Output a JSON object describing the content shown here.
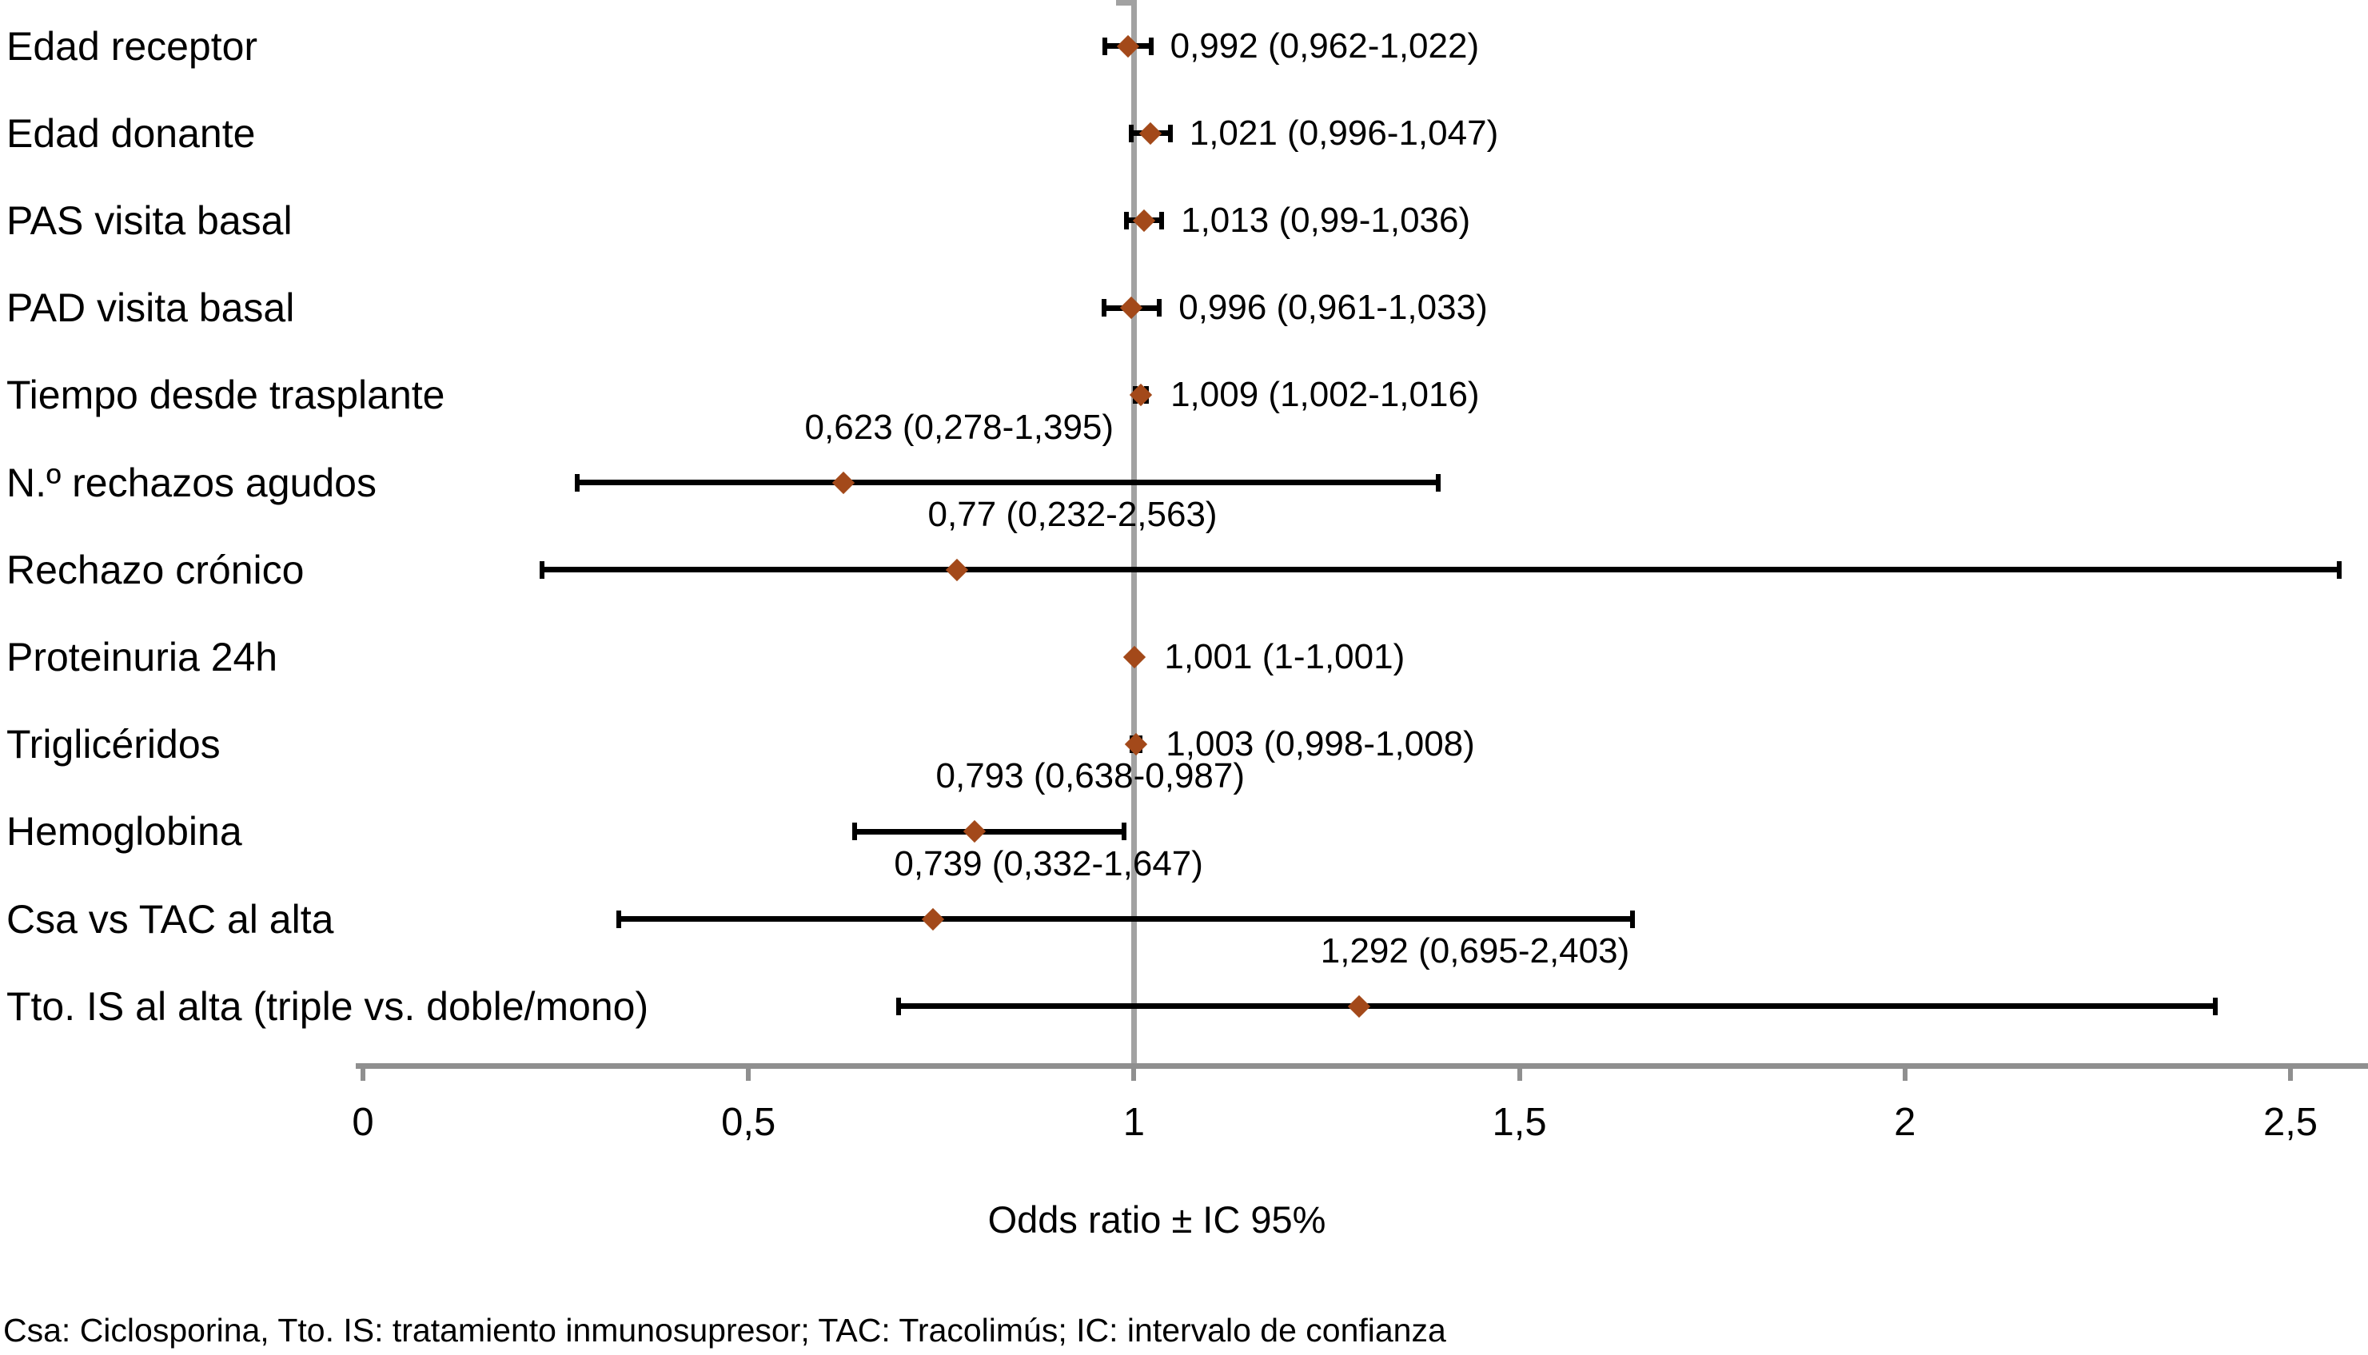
{
  "chart_data": {
    "type": "scatter",
    "variant": "forest-plot",
    "title": "",
    "xlabel": "Odds ratio ± IC 95%",
    "footnote": "Csa: Ciclosporina, Tto. IS: tratamiento inmunosupresor; TAC: Tracolimús; IC: intervalo de confianza",
    "x_axis": {
      "min": 0,
      "max": 2.6,
      "tick_values": [
        0,
        0.5,
        1,
        1.5,
        2,
        2.5
      ],
      "tick_labels": [
        "0",
        "0,5",
        "1",
        "1,5",
        "2",
        "2,5"
      ],
      "reference_line_at": 1,
      "grid": false
    },
    "rows": [
      {
        "label": "Edad receptor",
        "or": 0.992,
        "ci_low": 0.962,
        "ci_high": 1.022,
        "value_text": "0,992 (0,962-1,022)",
        "value_label_position": "right"
      },
      {
        "label": "Edad donante",
        "or": 1.021,
        "ci_low": 0.996,
        "ci_high": 1.047,
        "value_text": "1,021 (0,996-1,047)",
        "value_label_position": "right"
      },
      {
        "label": "PAS visita basal",
        "or": 1.013,
        "ci_low": 0.99,
        "ci_high": 1.036,
        "value_text": "1,013 (0,99-1,036)",
        "value_label_position": "right"
      },
      {
        "label": "PAD visita basal",
        "or": 0.996,
        "ci_low": 0.961,
        "ci_high": 1.033,
        "value_text": "0,996 (0,961-1,033)",
        "value_label_position": "right"
      },
      {
        "label": "Tiempo desde trasplante",
        "or": 1.009,
        "ci_low": 1.002,
        "ci_high": 1.016,
        "value_text": "1,009 (1,002-1,016)",
        "value_label_position": "right"
      },
      {
        "label": "N.º rechazos agudos",
        "or": 0.623,
        "ci_low": 0.278,
        "ci_high": 1.395,
        "value_text": "0,623 (0,278-1,395)",
        "value_label_position": "above"
      },
      {
        "label": "Rechazo crónico",
        "or": 0.77,
        "ci_low": 0.232,
        "ci_high": 2.563,
        "value_text": "0,77 (0,232-2,563)",
        "value_label_position": "above"
      },
      {
        "label": "Proteinuria 24h",
        "or": 1.001,
        "ci_low": 1.0,
        "ci_high": 1.001,
        "value_text": "1,001 (1-1,001)",
        "value_label_position": "right"
      },
      {
        "label": "Triglicéridos",
        "or": 1.003,
        "ci_low": 0.998,
        "ci_high": 1.008,
        "value_text": "1,003 (0,998-1,008)",
        "value_label_position": "right"
      },
      {
        "label": "Hemoglobina",
        "or": 0.793,
        "ci_low": 0.638,
        "ci_high": 0.987,
        "value_text": "0,793 (0,638-0,987)",
        "value_label_position": "above"
      },
      {
        "label": "Csa vs TAC al alta",
        "or": 0.739,
        "ci_low": 0.332,
        "ci_high": 1.647,
        "value_text": "0,739 (0,332-1,647)",
        "value_label_position": "above"
      },
      {
        "label": "Tto. IS al alta (triple vs. doble/mono)",
        "or": 1.292,
        "ci_low": 0.695,
        "ci_high": 2.403,
        "value_text": "1,292 (0,695-2,403)",
        "value_label_position": "above"
      }
    ],
    "colors": {
      "marker": "#a3491a",
      "ci_bar": "#000000",
      "axis": "#8f8f8f",
      "reference_line": "#a2a2a2",
      "text": "#000000",
      "background": "#ffffff"
    }
  }
}
